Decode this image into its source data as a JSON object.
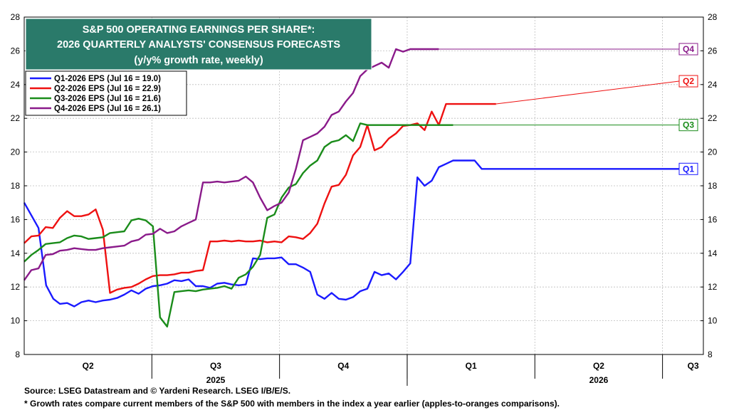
{
  "chart_data": {
    "type": "line",
    "title": [
      "S&P 500 OPERATING EARNINGS PER SHARE*:",
      "2026 QUARTERLY ANALYSTS' CONSENSUS FORECASTS",
      "(y/y% growth rate, weekly)"
    ],
    "ylim": [
      8,
      28
    ],
    "yticks": [
      8,
      10,
      12,
      14,
      16,
      18,
      20,
      22,
      24,
      26,
      28
    ],
    "grid": true,
    "legend_position": "top-left",
    "x_range": [
      2025.25,
      2026.58
    ],
    "quarter_ticks": [
      {
        "label": "Q2",
        "x": 2025.375
      },
      {
        "label": "Q3",
        "x": 2025.625
      },
      {
        "label": "Q4",
        "x": 2025.875
      },
      {
        "label": "Q1",
        "x": 2026.125
      },
      {
        "label": "Q2",
        "x": 2026.375
      },
      {
        "label": "Q3",
        "x": 2026.56
      }
    ],
    "year_labels": [
      {
        "label": "2025",
        "x": 2025.625
      },
      {
        "label": "2026",
        "x": 2026.375
      }
    ],
    "series": [
      {
        "name": "Q1-2026 EPS (Jul 16 = 19.0)",
        "end_label": "Q1",
        "color": "#1a1aff",
        "x": [
          2025.25,
          2025.278,
          2025.293,
          2025.307,
          2025.32,
          2025.334,
          2025.348,
          2025.362,
          2025.376,
          2025.39,
          2025.404,
          2025.418,
          2025.432,
          2025.446,
          2025.46,
          2025.474,
          2025.488,
          2025.502,
          2025.516,
          2025.53,
          2025.544,
          2025.558,
          2025.572,
          2025.586,
          2025.6,
          2025.614,
          2025.628,
          2025.642,
          2025.656,
          2025.67,
          2025.684,
          2025.698,
          2025.712,
          2025.726,
          2025.74,
          2025.754,
          2025.768,
          2025.782,
          2025.796,
          2025.81,
          2025.824,
          2025.838,
          2025.852,
          2025.866,
          2025.88,
          2025.894,
          2025.908,
          2025.922,
          2025.936,
          2025.95,
          2025.964,
          2025.978,
          2025.992,
          2026.006,
          2026.02,
          2026.034,
          2026.048,
          2026.062,
          2026.076,
          2026.09,
          2026.104,
          2026.118,
          2026.132,
          2026.146,
          2026.16,
          2026.174,
          2026.188,
          2026.202,
          2026.216,
          2026.23,
          2026.244,
          2026.258,
          2026.272,
          2026.286,
          2026.3,
          2026.314,
          2026.328,
          2026.342,
          2026.356,
          2026.37,
          2026.384,
          2026.398,
          2026.412,
          2026.426,
          2026.44,
          2026.454,
          2026.468,
          2026.482,
          2026.496,
          2026.51,
          2026.524,
          2026.538
        ],
        "values": [
          17.0,
          15.5,
          12.1,
          11.3,
          11.0,
          11.05,
          10.85,
          11.1,
          11.2,
          11.1,
          11.2,
          11.25,
          11.35,
          11.55,
          11.8,
          11.6,
          11.9,
          12.05,
          12.1,
          12.2,
          12.4,
          12.35,
          12.45,
          12.05,
          12.05,
          11.95,
          12.2,
          12.25,
          12.15,
          12.1,
          12.15,
          13.7,
          13.65,
          13.7,
          13.7,
          13.75,
          13.35,
          13.35,
          13.15,
          12.9,
          11.55,
          11.3,
          11.65,
          11.3,
          11.25,
          11.4,
          11.75,
          11.9,
          12.9,
          12.7,
          12.8,
          12.45,
          12.9,
          13.4,
          18.5,
          18.0,
          18.3,
          19.1,
          19.3,
          19.5,
          19.5,
          19.5,
          19.5,
          19.0,
          19.0,
          19.0,
          19.0,
          19.0,
          19.0,
          19.0,
          19.0,
          19.0,
          19.0,
          19.0,
          19.0,
          19.0,
          19.0,
          19.0,
          19.0,
          19.0,
          19.0,
          19.0,
          19.0,
          19.0,
          19.0,
          19.0,
          19.0,
          19.0,
          19.0,
          19.0,
          19.0,
          19.0
        ]
      },
      {
        "name": "Q2-2026 EPS (Jul 16 = 22.9)",
        "end_label": "Q2",
        "color": "#ee1111",
        "x": [
          2025.25,
          2025.264,
          2025.278,
          2025.292,
          2025.306,
          2025.32,
          2025.334,
          2025.348,
          2025.362,
          2025.376,
          2025.39,
          2025.404,
          2025.418,
          2025.432,
          2025.446,
          2025.46,
          2025.474,
          2025.488,
          2025.502,
          2025.516,
          2025.53,
          2025.544,
          2025.558,
          2025.572,
          2025.586,
          2025.6,
          2025.614,
          2025.628,
          2025.642,
          2025.656,
          2025.67,
          2025.684,
          2025.698,
          2025.712,
          2025.726,
          2025.74,
          2025.754,
          2025.768,
          2025.782,
          2025.796,
          2025.81,
          2025.824,
          2025.838,
          2025.852,
          2025.866,
          2025.88,
          2025.894,
          2025.908,
          2025.922,
          2025.936,
          2025.95,
          2025.964,
          2025.978,
          2025.992,
          2026.006,
          2026.02,
          2026.034,
          2026.048,
          2026.062,
          2026.076,
          2026.09,
          2026.104,
          2026.118,
          2026.132,
          2026.146,
          2026.16,
          2026.174
        ],
        "values": [
          14.6,
          15.0,
          15.05,
          15.55,
          15.5,
          16.1,
          16.5,
          16.2,
          16.2,
          16.3,
          16.6,
          15.4,
          11.65,
          11.85,
          11.95,
          12.0,
          12.2,
          12.45,
          12.65,
          12.7,
          12.7,
          12.75,
          12.85,
          12.85,
          12.95,
          13.0,
          14.7,
          14.7,
          14.75,
          14.7,
          14.75,
          14.7,
          14.7,
          14.75,
          14.65,
          14.7,
          14.65,
          15.0,
          14.95,
          14.85,
          15.2,
          15.75,
          16.95,
          17.95,
          18.05,
          18.65,
          19.8,
          20.3,
          21.6,
          20.1,
          20.3,
          20.8,
          21.1,
          21.55,
          21.6,
          21.7,
          21.3,
          22.4,
          21.6,
          22.85,
          22.85,
          22.85,
          22.85,
          22.85,
          22.85,
          22.85,
          22.85
        ]
      },
      {
        "name": "Q3-2026 EPS (Jul 16 = 21.6)",
        "end_label": "Q3",
        "color": "#1a8c1a",
        "x": [
          2025.25,
          2025.264,
          2025.278,
          2025.292,
          2025.306,
          2025.32,
          2025.334,
          2025.348,
          2025.362,
          2025.376,
          2025.39,
          2025.404,
          2025.418,
          2025.432,
          2025.446,
          2025.46,
          2025.474,
          2025.488,
          2025.502,
          2025.516,
          2025.53,
          2025.544,
          2025.558,
          2025.572,
          2025.586,
          2025.6,
          2025.614,
          2025.628,
          2025.642,
          2025.656,
          2025.67,
          2025.684,
          2025.698,
          2025.712,
          2025.726,
          2025.74,
          2025.754,
          2025.768,
          2025.782,
          2025.796,
          2025.81,
          2025.824,
          2025.838,
          2025.852,
          2025.866,
          2025.88,
          2025.894,
          2025.908,
          2025.922,
          2025.936,
          2025.95,
          2025.964,
          2025.978,
          2025.992,
          2026.006,
          2026.02,
          2026.034,
          2026.048,
          2026.062,
          2026.076,
          2026.09
        ],
        "values": [
          13.5,
          13.9,
          14.2,
          14.55,
          14.6,
          14.65,
          14.9,
          15.05,
          15.0,
          14.85,
          14.9,
          14.95,
          15.2,
          15.25,
          15.3,
          15.95,
          16.05,
          15.95,
          15.6,
          10.2,
          9.65,
          11.7,
          11.75,
          11.8,
          11.75,
          11.85,
          11.9,
          11.95,
          12.05,
          11.9,
          12.55,
          12.75,
          13.2,
          13.9,
          16.1,
          16.3,
          17.3,
          17.9,
          18.1,
          18.75,
          19.2,
          19.5,
          20.3,
          20.6,
          20.7,
          21.0,
          20.65,
          21.7,
          21.6,
          21.6,
          21.6,
          21.6,
          21.6,
          21.6,
          21.6,
          21.6,
          21.6,
          21.6,
          21.6,
          21.6,
          21.6
        ]
      },
      {
        "name": "Q4-2026 EPS (Jul 16 = 26.1)",
        "end_label": "Q4",
        "color": "#8a1a8a",
        "x": [
          2025.25,
          2025.264,
          2025.278,
          2025.292,
          2025.306,
          2025.32,
          2025.334,
          2025.348,
          2025.362,
          2025.376,
          2025.39,
          2025.404,
          2025.418,
          2025.432,
          2025.446,
          2025.46,
          2025.474,
          2025.488,
          2025.502,
          2025.516,
          2025.53,
          2025.544,
          2025.558,
          2025.572,
          2025.586,
          2025.6,
          2025.614,
          2025.628,
          2025.642,
          2025.656,
          2025.67,
          2025.684,
          2025.698,
          2025.712,
          2025.726,
          2025.74,
          2025.754,
          2025.768,
          2025.782,
          2025.796,
          2025.81,
          2025.824,
          2025.838,
          2025.852,
          2025.866,
          2025.88,
          2025.894,
          2025.908,
          2025.922,
          2025.936,
          2025.95,
          2025.964,
          2025.978,
          2025.992,
          2026.006,
          2026.02,
          2026.034,
          2026.048,
          2026.062
        ],
        "values": [
          12.4,
          13.0,
          13.1,
          13.9,
          13.95,
          14.15,
          14.2,
          14.3,
          14.25,
          14.2,
          14.2,
          14.3,
          14.35,
          14.4,
          14.45,
          14.7,
          14.8,
          15.1,
          15.15,
          15.45,
          15.2,
          15.3,
          15.6,
          15.8,
          16.0,
          18.2,
          18.2,
          18.25,
          18.2,
          18.25,
          18.3,
          18.55,
          18.2,
          17.3,
          16.55,
          16.8,
          17.0,
          17.6,
          19.0,
          20.7,
          20.9,
          21.1,
          21.5,
          22.2,
          22.4,
          23.0,
          23.5,
          24.5,
          24.9,
          25.1,
          25.3,
          25.0,
          26.1,
          25.95,
          26.1,
          26.1,
          26.1,
          26.1,
          26.1
        ]
      }
    ]
  },
  "source_note": "Source: LSEG Datastream and © Yardeni Research. LSEG I/B/E/S.",
  "footnote": "* Growth rates compare current members of the S&P 500 with members in the index a year earlier (apples-to-oranges comparisons).",
  "colors": {
    "title_box": "#2a7a6a",
    "grid": "#bdbdbd"
  }
}
